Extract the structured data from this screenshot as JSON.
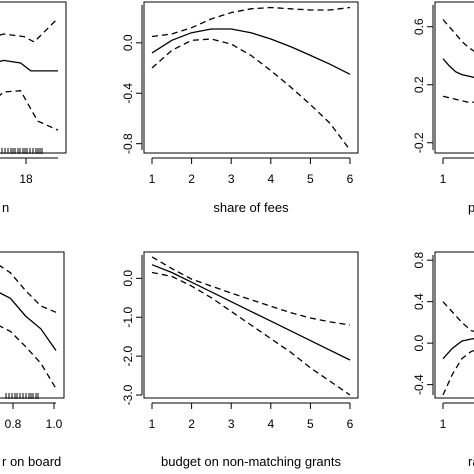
{
  "chart_data": [
    {
      "type": "line",
      "panel": "top-left",
      "title": "",
      "xlabel": "n",
      "ylabel": "",
      "x_ticks": [
        "18"
      ],
      "y_ticks": [],
      "series": [
        {
          "role": "estimate",
          "x": [
            0,
            0.2,
            0.45,
            0.6,
            1
          ],
          "y": [
            0.55,
            0.58,
            0.56,
            0.5,
            0.5
          ]
        },
        {
          "role": "upper",
          "x": [
            0,
            0.2,
            0.5,
            0.65,
            1
          ],
          "y": [
            0.75,
            0.78,
            0.76,
            0.72,
            0.9
          ]
        },
        {
          "role": "lower",
          "x": [
            0,
            0.2,
            0.45,
            0.7,
            1
          ],
          "y": [
            0.25,
            0.34,
            0.35,
            0.12,
            0.05
          ]
        }
      ],
      "rug": true
    },
    {
      "type": "line",
      "panel": "top-middle",
      "title": "",
      "xlabel": "share of fees",
      "ylabel": "",
      "xlim": [
        1,
        6
      ],
      "ylim": [
        -0.85,
        0.3
      ],
      "x_ticks": [
        "1",
        "2",
        "3",
        "4",
        "5",
        "6"
      ],
      "y_ticks": [
        "0.0",
        "-0.4",
        "-0.8"
      ],
      "x": [
        1,
        1.5,
        2,
        2.5,
        3,
        3.5,
        4,
        4.5,
        5,
        5.5,
        6
      ],
      "series": [
        {
          "role": "estimate",
          "values": [
            -0.08,
            0.02,
            0.08,
            0.11,
            0.11,
            0.08,
            0.03,
            -0.03,
            -0.1,
            -0.17,
            -0.25
          ]
        },
        {
          "role": "upper",
          "values": [
            0.05,
            0.07,
            0.12,
            0.19,
            0.24,
            0.27,
            0.28,
            0.27,
            0.26,
            0.26,
            0.28
          ]
        },
        {
          "role": "lower",
          "values": [
            -0.2,
            -0.06,
            0.02,
            0.03,
            -0.01,
            -0.1,
            -0.22,
            -0.35,
            -0.49,
            -0.64,
            -0.85
          ]
        }
      ]
    },
    {
      "type": "line",
      "panel": "top-right",
      "title": "",
      "xlabel": "pu",
      "ylabel": "",
      "xlim": [
        1,
        6
      ],
      "ylim": [
        -0.25,
        0.75
      ],
      "x_ticks": [
        "1"
      ],
      "y_ticks": [
        "0.6",
        "0.2",
        "-0.2"
      ],
      "x": [
        1,
        1.2,
        1.4,
        1.6,
        1.8,
        2.0
      ],
      "series": [
        {
          "role": "estimate",
          "values": [
            0.38,
            0.33,
            0.29,
            0.27,
            0.26,
            0.25
          ]
        },
        {
          "role": "upper",
          "values": [
            0.65,
            0.6,
            0.55,
            0.5,
            0.46,
            0.43
          ]
        },
        {
          "role": "lower",
          "values": [
            0.12,
            0.11,
            0.1,
            0.09,
            0.08,
            0.08
          ]
        }
      ]
    },
    {
      "type": "line",
      "panel": "bottom-left",
      "title": "",
      "xlabel": "r on board",
      "ylabel": "",
      "xlim": [
        0.5,
        1.0
      ],
      "x_ticks": [
        "0.8",
        "1.0"
      ],
      "y_ticks": [],
      "series": [
        {
          "role": "estimate",
          "x": [
            0.5,
            0.6,
            0.7,
            0.8,
            0.9,
            1.0
          ],
          "y": [
            0.75,
            0.72,
            0.66,
            0.52,
            0.42,
            0.25
          ]
        },
        {
          "role": "upper",
          "x": [
            0.5,
            0.6,
            0.7,
            0.8,
            0.9,
            1.0
          ],
          "y": [
            0.98,
            0.94,
            0.86,
            0.72,
            0.6,
            0.55
          ]
        },
        {
          "role": "lower",
          "x": [
            0.5,
            0.6,
            0.7,
            0.8,
            0.9,
            1.0
          ],
          "y": [
            0.52,
            0.46,
            0.4,
            0.28,
            0.15,
            -0.05
          ]
        }
      ],
      "rug": true
    },
    {
      "type": "line",
      "panel": "bottom-middle",
      "title": "",
      "xlabel": "budget on non-matching grants",
      "ylabel": "",
      "xlim": [
        1,
        6
      ],
      "ylim": [
        -3.0,
        0.6
      ],
      "x_ticks": [
        "1",
        "2",
        "3",
        "4",
        "5",
        "6"
      ],
      "y_ticks": [
        "0.0",
        "-1.0",
        "-2.0",
        "-3.0"
      ],
      "x": [
        1,
        1.5,
        2,
        2.5,
        3,
        3.5,
        4,
        4.5,
        5,
        5.5,
        6
      ],
      "series": [
        {
          "role": "estimate",
          "values": [
            0.35,
            0.15,
            -0.1,
            -0.35,
            -0.6,
            -0.85,
            -1.1,
            -1.35,
            -1.6,
            -1.85,
            -2.1
          ]
        },
        {
          "role": "upper",
          "values": [
            0.55,
            0.25,
            -0.02,
            -0.2,
            -0.38,
            -0.55,
            -0.72,
            -0.88,
            -1.02,
            -1.12,
            -1.2
          ]
        },
        {
          "role": "lower",
          "values": [
            0.15,
            0.05,
            -0.2,
            -0.5,
            -0.85,
            -1.2,
            -1.55,
            -1.9,
            -2.3,
            -2.65,
            -3.0
          ]
        }
      ]
    },
    {
      "type": "line",
      "panel": "bottom-right",
      "title": "",
      "xlabel": "ran",
      "ylabel": "",
      "xlim": [
        1,
        6
      ],
      "ylim": [
        -0.5,
        0.85
      ],
      "x_ticks": [
        "1"
      ],
      "y_ticks": [
        "0.8",
        "0.4",
        "0.0",
        "-0.4"
      ],
      "x": [
        1,
        1.3,
        1.6,
        1.9,
        2.2
      ],
      "series": [
        {
          "role": "estimate",
          "values": [
            -0.15,
            -0.05,
            0.02,
            0.04,
            0.05
          ]
        },
        {
          "role": "upper",
          "values": [
            0.4,
            0.3,
            0.2,
            0.12,
            0.1
          ]
        },
        {
          "role": "lower",
          "values": [
            -0.5,
            -0.3,
            -0.15,
            -0.08,
            -0.05
          ]
        }
      ]
    }
  ]
}
